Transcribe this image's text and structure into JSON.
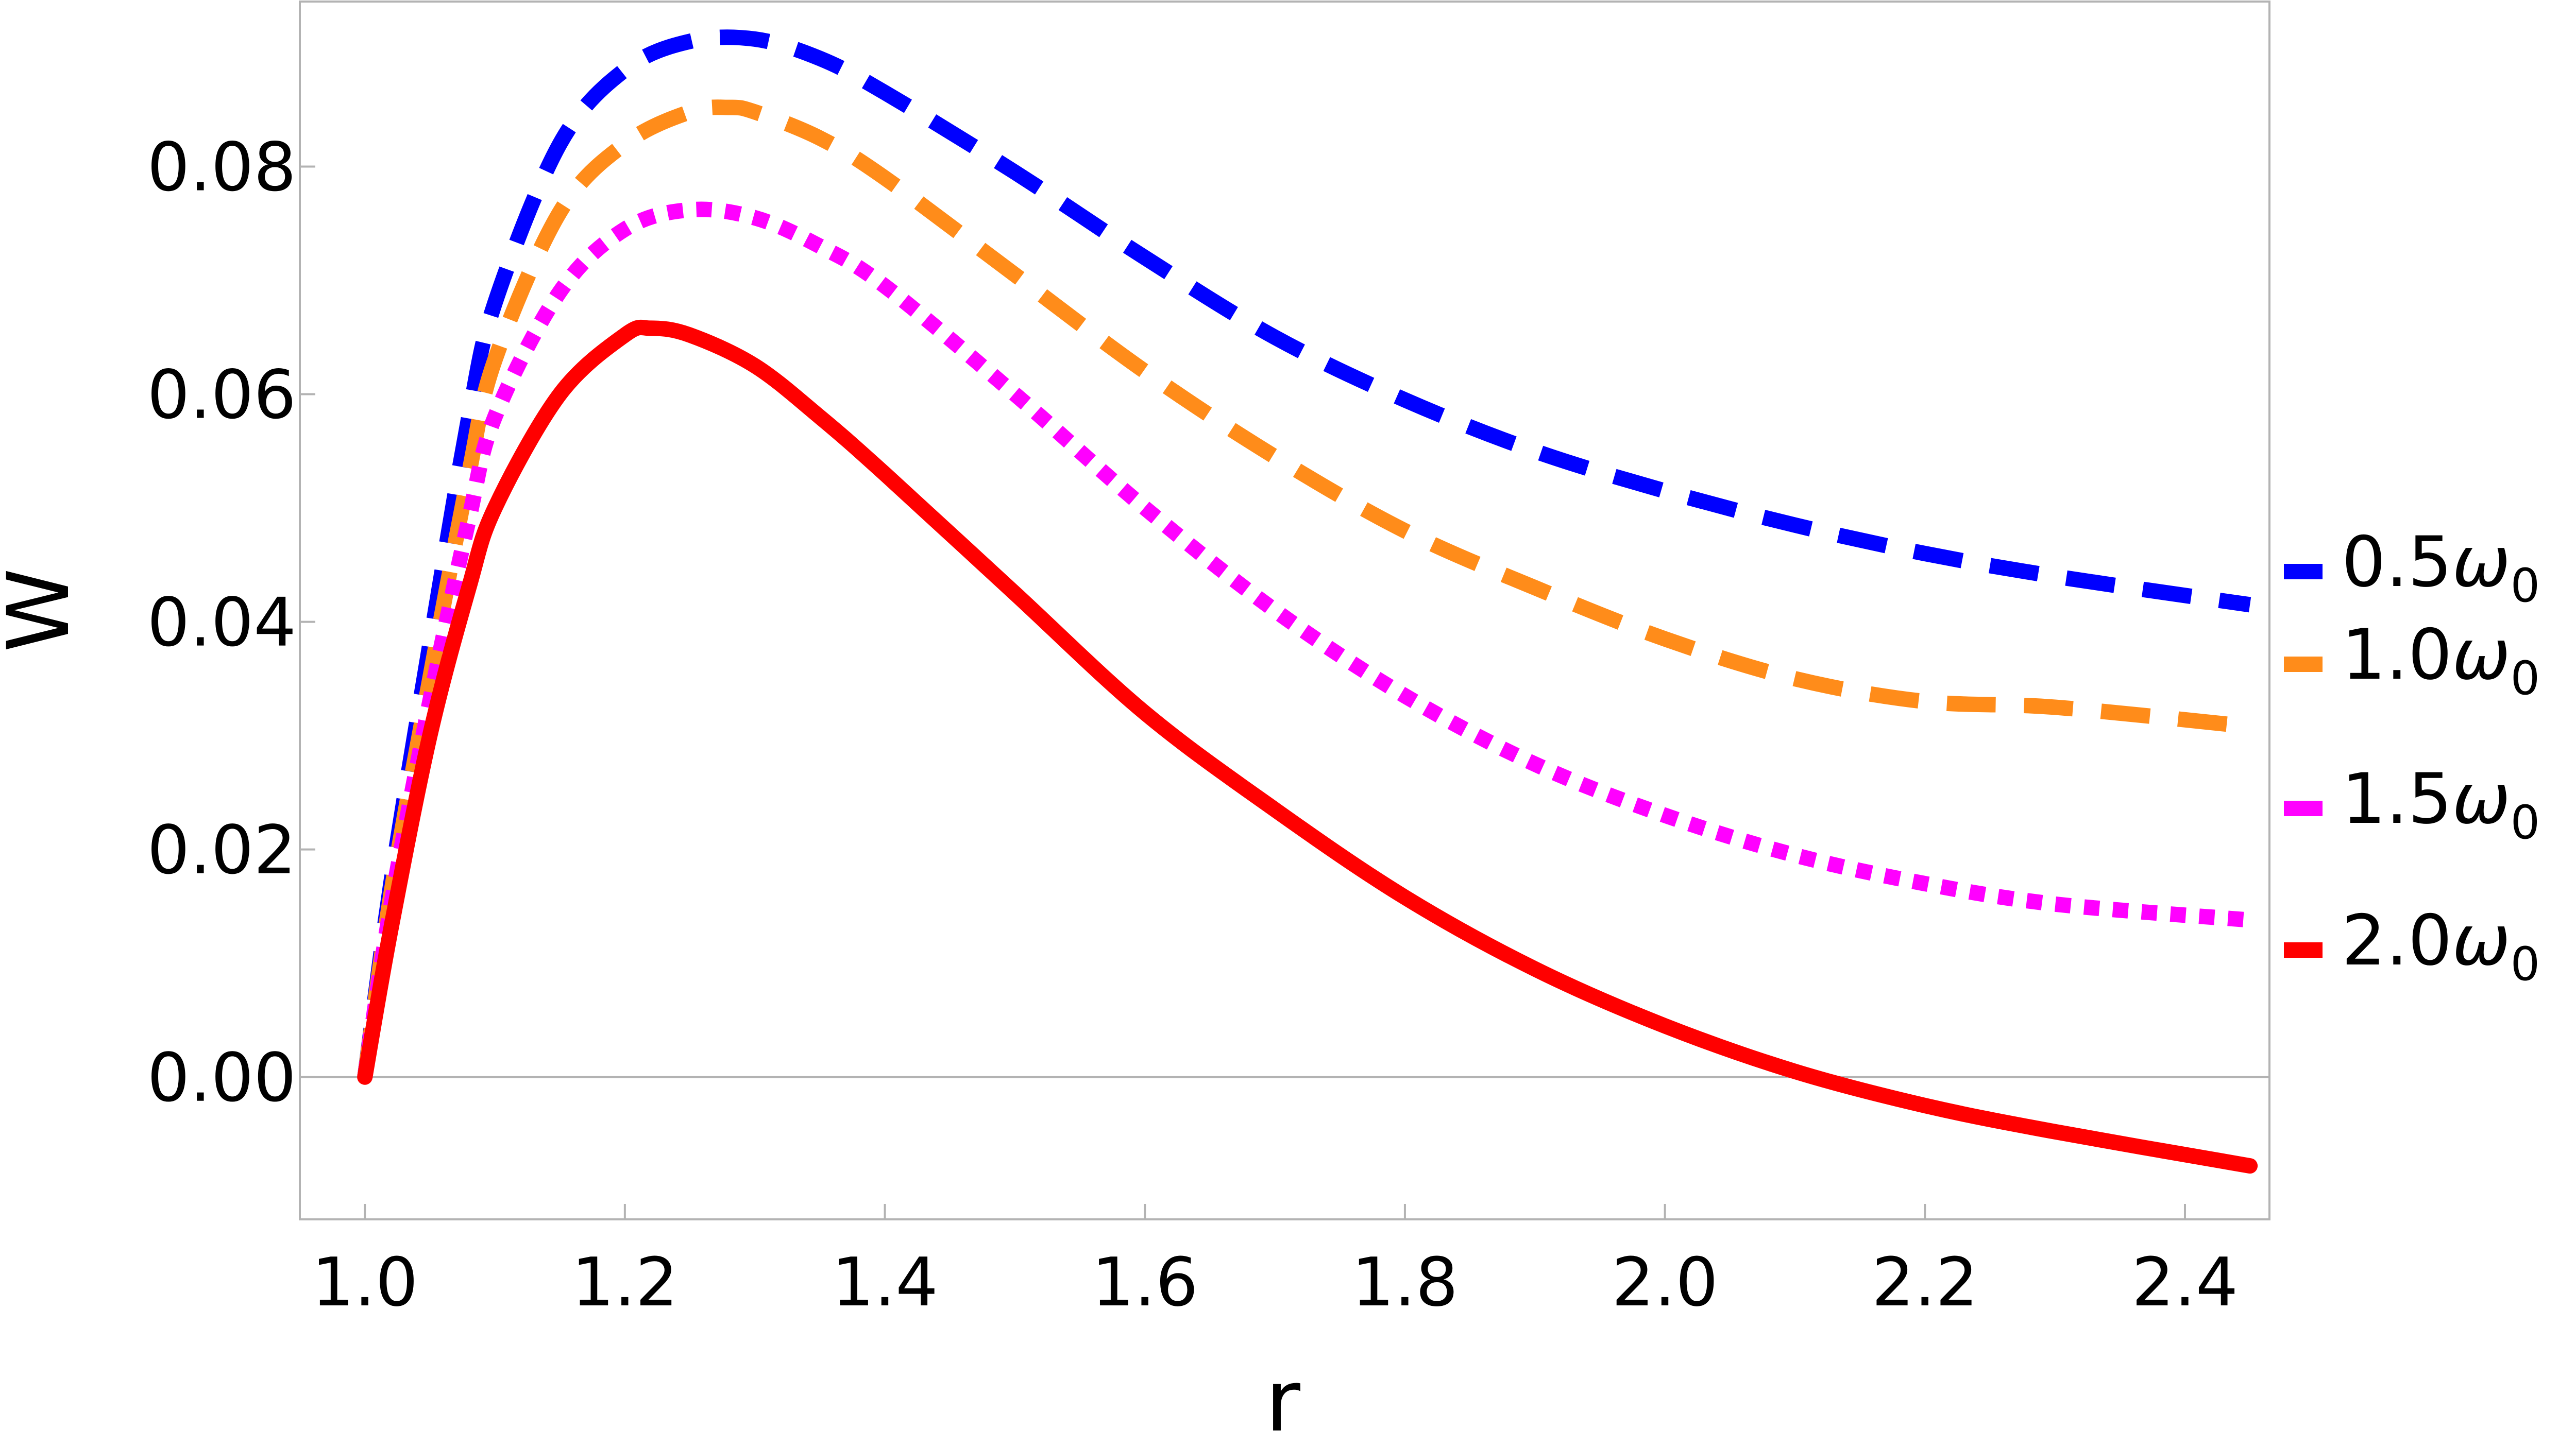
{
  "chart_data": {
    "type": "line",
    "title": "",
    "xlabel": "r",
    "ylabel": "W",
    "xlim": [
      0.95,
      2.465
    ],
    "ylim": [
      -0.0125,
      0.0945
    ],
    "xticks": [
      "1.0",
      "1.2",
      "1.4",
      "1.6",
      "1.8",
      "2.0",
      "2.2",
      "2.4"
    ],
    "yticks": [
      "0.00",
      "0.02",
      "0.04",
      "0.06",
      "0.08"
    ],
    "grid": false,
    "legend_position": "right",
    "series": [
      {
        "name": "0.5ω₀",
        "label_main": "0.5",
        "label_symbol": "ω",
        "label_sub": "0",
        "color": "#0000ff",
        "style": "dashed",
        "x": [
          1.0,
          1.02,
          1.05,
          1.08,
          1.1,
          1.15,
          1.2,
          1.25,
          1.3,
          1.35,
          1.4,
          1.5,
          1.6,
          1.7,
          1.8,
          1.9,
          2.0,
          2.1,
          2.2,
          2.3,
          2.45
        ],
        "y": [
          0.0,
          0.017,
          0.038,
          0.058,
          0.068,
          0.082,
          0.0885,
          0.091,
          0.0912,
          0.0895,
          0.0865,
          0.0795,
          0.072,
          0.065,
          0.0595,
          0.055,
          0.0515,
          0.0485,
          0.046,
          0.044,
          0.0415
        ]
      },
      {
        "name": "1.0ω₀",
        "label_main": "1.0",
        "label_symbol": "ω",
        "label_sub": "0",
        "color": "#ff8c1a",
        "style": "dashed",
        "x": [
          1.0,
          1.02,
          1.05,
          1.08,
          1.1,
          1.15,
          1.2,
          1.25,
          1.28,
          1.3,
          1.35,
          1.4,
          1.5,
          1.6,
          1.7,
          1.8,
          1.9,
          2.0,
          2.1,
          2.2,
          2.3,
          2.45
        ],
        "y": [
          0.0,
          0.016,
          0.035,
          0.053,
          0.063,
          0.076,
          0.082,
          0.0848,
          0.0852,
          0.0848,
          0.0825,
          0.079,
          0.0705,
          0.062,
          0.0545,
          0.048,
          0.043,
          0.0385,
          0.035,
          0.033,
          0.0325,
          0.0308
        ]
      },
      {
        "name": "1.5ω₀",
        "label_main": "1.5",
        "label_symbol": "ω",
        "label_sub": "0",
        "color": "#ff00ff",
        "style": "dotted",
        "x": [
          1.0,
          1.02,
          1.05,
          1.08,
          1.1,
          1.15,
          1.2,
          1.25,
          1.3,
          1.35,
          1.4,
          1.5,
          1.6,
          1.7,
          1.8,
          1.9,
          2.0,
          2.1,
          2.2,
          2.3,
          2.45
        ],
        "y": [
          0.0,
          0.015,
          0.033,
          0.049,
          0.058,
          0.069,
          0.0745,
          0.0762,
          0.0755,
          0.073,
          0.0695,
          0.06,
          0.05,
          0.041,
          0.0335,
          0.0275,
          0.023,
          0.0195,
          0.017,
          0.0152,
          0.0138
        ]
      },
      {
        "name": "2.0ω₀",
        "label_main": "2.0",
        "label_symbol": "ω",
        "label_sub": "0",
        "color": "#ff0000",
        "style": "solid",
        "x": [
          1.0,
          1.02,
          1.05,
          1.08,
          1.1,
          1.15,
          1.2,
          1.22,
          1.25,
          1.3,
          1.35,
          1.4,
          1.5,
          1.6,
          1.7,
          1.8,
          1.9,
          2.0,
          2.1,
          2.2,
          2.3,
          2.45
        ],
        "y": [
          0.0,
          0.013,
          0.03,
          0.043,
          0.05,
          0.06,
          0.0652,
          0.0658,
          0.0652,
          0.0625,
          0.058,
          0.053,
          0.0425,
          0.032,
          0.0235,
          0.0158,
          0.0095,
          0.0045,
          0.0005,
          -0.0025,
          -0.0048,
          -0.0078
        ]
      }
    ]
  }
}
